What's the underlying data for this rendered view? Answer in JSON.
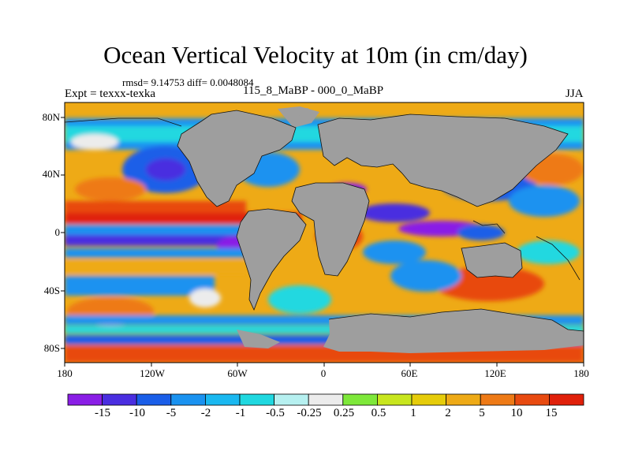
{
  "figure": {
    "title": "Ocean Vertical Velocity at 10m (in cm/day)",
    "stats": "rmsd= 9.14753 diff= 0.0048084",
    "left_label": "Expt = texxx-texka",
    "center_label": "115_8_MaBP - 000_0_MaBP",
    "right_label": "JJA"
  },
  "map": {
    "latitude_labels": [
      "80N",
      "40N",
      "0",
      "40S",
      "80S"
    ],
    "longitude_labels": [
      "180",
      "120W",
      "60W",
      "0",
      "60E",
      "120E",
      "180"
    ],
    "land_color": "#9e9e9e"
  },
  "colorbar": {
    "labels": [
      "-15",
      "-10",
      "-5",
      "-2",
      "-1",
      "-0.5",
      "-0.25",
      "0.25",
      "0.5",
      "1",
      "2",
      "5",
      "10",
      "15"
    ],
    "colors": [
      "#8a1ee6",
      "#4a2ee0",
      "#1a5ee8",
      "#1a92f0",
      "#1ab8f0",
      "#20d8e0",
      "#b6f0f0",
      "#ececec",
      "#7ee83a",
      "#c8e61e",
      "#e6cc0a",
      "#eeaa16",
      "#ee7a16",
      "#e84a10",
      "#e0200a"
    ]
  }
}
